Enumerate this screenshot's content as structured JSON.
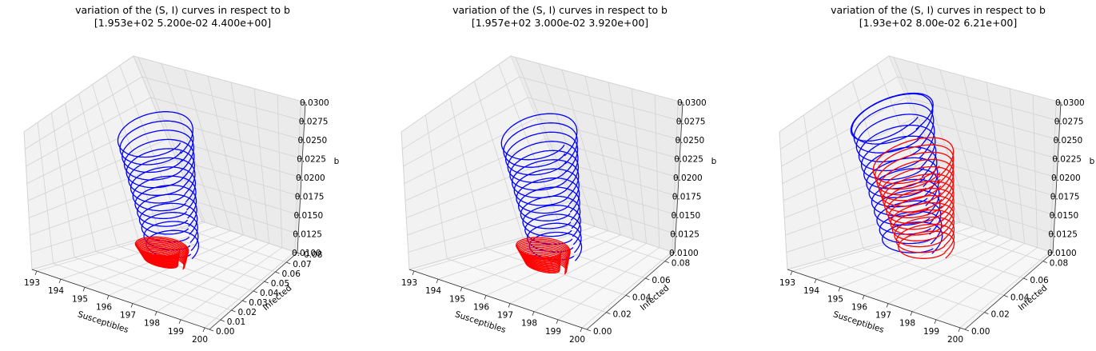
{
  "chart_data": [
    {
      "type": "line",
      "title_line1": "variation of the (S, I) curves in respect to b",
      "title_line2": "[1.953e+02 5.200e-02 4.400e+00]",
      "xlabel": "Susceptibles",
      "ylabel": "Infected",
      "zlabel": "b",
      "x_ticks": [
        "193",
        "194",
        "195",
        "196",
        "197",
        "198",
        "199",
        "200"
      ],
      "y_ticks": [
        "0.00",
        "0.01",
        "0.02",
        "0.03",
        "0.04",
        "0.05",
        "0.06",
        "0.07",
        "0.08"
      ],
      "z_ticks": [
        "0.0100",
        "0.0125",
        "0.0150",
        "0.0175",
        "0.0200",
        "0.0225",
        "0.0250",
        "0.0275",
        "0.0300"
      ],
      "xlim": [
        192.8,
        200.2
      ],
      "ylim": [
        0.0,
        0.08
      ],
      "zlim": [
        0.01,
        0.03
      ],
      "grid": true,
      "series": [
        {
          "color": "#0000ff",
          "b_range": [
            0.0125,
            0.0275
          ],
          "s_center": 196.3,
          "i_amplitude": 0.022
        },
        {
          "color": "#ff0000",
          "b_range": [
            0.0105,
            0.0125
          ],
          "s_center": 195.7,
          "i_amplitude": 0.01
        }
      ]
    },
    {
      "type": "line",
      "title_line1": "variation of the (S, I) curves in respect to b",
      "title_line2": "[1.957e+02 3.000e-02 3.920e+00]",
      "xlabel": "Susceptibles",
      "ylabel": "Infected",
      "zlabel": "b",
      "x_ticks": [
        "193",
        "194",
        "195",
        "196",
        "197",
        "198",
        "199",
        "200"
      ],
      "y_ticks": [
        "0.00",
        "0.02",
        "0.04",
        "0.06",
        "0.08"
      ],
      "z_ticks": [
        "0.0100",
        "0.0125",
        "0.0150",
        "0.0175",
        "0.0200",
        "0.0225",
        "0.0250",
        "0.0275",
        "0.0300"
      ],
      "xlim": [
        192.8,
        200.2
      ],
      "ylim": [
        0.0,
        0.09
      ],
      "zlim": [
        0.01,
        0.03
      ],
      "grid": true,
      "series": [
        {
          "color": "#0000ff",
          "b_range": [
            0.0125,
            0.0275
          ],
          "s_center": 196.6,
          "i_amplitude": 0.025
        },
        {
          "color": "#ff0000",
          "b_range": [
            0.01,
            0.0125
          ],
          "s_center": 195.9,
          "i_amplitude": 0.012
        }
      ]
    },
    {
      "type": "line",
      "title_line1": "variation of the (S, I) curves in respect to b",
      "title_line2": "[1.93e+02 8.00e-02 6.21e+00]",
      "xlabel": "Susceptibles",
      "ylabel": "Infected",
      "zlabel": "b",
      "x_ticks": [
        "193",
        "194",
        "195",
        "196",
        "197",
        "198",
        "199",
        "200"
      ],
      "y_ticks": [
        "0.00",
        "0.02",
        "0.04",
        "0.06",
        "0.08"
      ],
      "z_ticks": [
        "0.0100",
        "0.0125",
        "0.0150",
        "0.0175",
        "0.0200",
        "0.0225",
        "0.0250",
        "0.0275",
        "0.0300"
      ],
      "xlim": [
        192.8,
        200.2
      ],
      "ylim": [
        0.0,
        0.09
      ],
      "zlim": [
        0.01,
        0.03
      ],
      "grid": true,
      "series": [
        {
          "color": "#0000ff",
          "b_range": [
            0.0125,
            0.03
          ],
          "s_center": 195.5,
          "i_amplitude": 0.03
        },
        {
          "color": "#ff0000",
          "b_range": [
            0.0125,
            0.024
          ],
          "s_center": 196.2,
          "i_amplitude": 0.028
        }
      ]
    }
  ]
}
